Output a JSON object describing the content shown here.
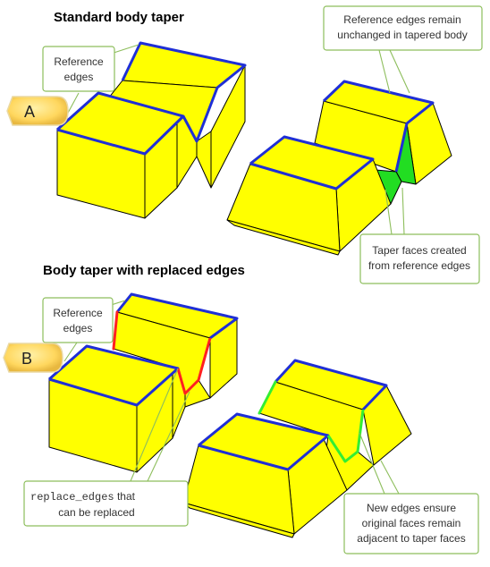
{
  "headings": {
    "a": "Standard body taper",
    "b": "Body taper with replaced edges"
  },
  "badges": {
    "a": "A",
    "b": "B"
  },
  "callouts": {
    "ref_edges_a": [
      "Reference",
      "edges"
    ],
    "unchanged": [
      "Reference edges remain",
      "unchanged in tapered body"
    ],
    "taper_faces": [
      "Taper faces created",
      "from reference edges"
    ],
    "ref_edges_b": [
      "Reference",
      "edges"
    ],
    "replace_edges": {
      "code": "replace_edges",
      "rest": " that",
      "line2": "can be replaced"
    },
    "new_edges": [
      "New edges ensure",
      "original faces remain",
      "adjacent to taper faces"
    ]
  },
  "colors": {
    "body_face": "#ffff00",
    "reference_edge": "#1f2fd6",
    "replaceable_edge": "#ff2020",
    "new_edge": "#33ee33",
    "taper_face": "#22dd22",
    "callout_border": "#8dbe5c",
    "badge_fill": "#ffd75e"
  }
}
